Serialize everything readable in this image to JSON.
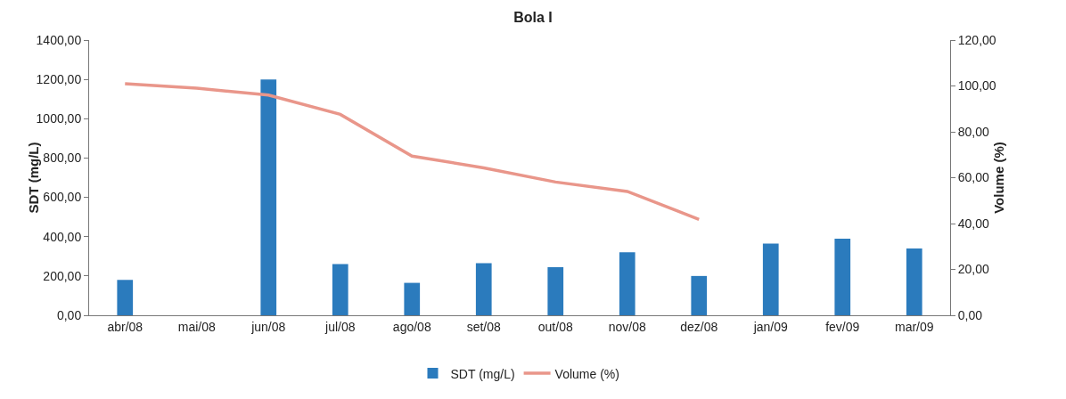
{
  "chart_data": {
    "type": "bar",
    "title": "Bola I",
    "ylabel": "SDT (mg/L)",
    "y2label": "Volume (%)",
    "categories": [
      "abr/08",
      "mai/08",
      "jun/08",
      "jul/08",
      "ago/08",
      "set/08",
      "out/08",
      "nov/08",
      "dez/08",
      "jan/09",
      "fev/09",
      "mar/09"
    ],
    "series": [
      {
        "name": "SDT (mg/L)",
        "color": "#2b7bbd",
        "values": [
          180,
          null,
          1200,
          260,
          165,
          265,
          245,
          320,
          200,
          365,
          390,
          340
        ]
      },
      {
        "name": "Volume (%)",
        "type": "line",
        "axis": "y2",
        "color": "#e9968a",
        "values": [
          101,
          99,
          96,
          87.6,
          69.4,
          64.3,
          58.1,
          54,
          41.8,
          null,
          null,
          null
        ]
      }
    ],
    "ylim": [
      0,
      1400
    ],
    "yticks": [
      {
        "value": 0,
        "label": "0,00"
      },
      {
        "value": 200,
        "label": "200,00"
      },
      {
        "value": 400,
        "label": "400,00"
      },
      {
        "value": 600,
        "label": "600,00"
      },
      {
        "value": 800,
        "label": "800,00"
      },
      {
        "value": 1000,
        "label": "1000,00"
      },
      {
        "value": 1200,
        "label": "1200,00"
      },
      {
        "value": 1400,
        "label": "1400,00"
      }
    ],
    "y2lim": [
      0,
      120
    ],
    "y2ticks": [
      {
        "value": 0,
        "label": "0,00"
      },
      {
        "value": 20,
        "label": "20,00"
      },
      {
        "value": 40,
        "label": "40,00"
      },
      {
        "value": 60,
        "label": "60,00"
      },
      {
        "value": 80,
        "label": "80,00"
      },
      {
        "value": 100,
        "label": "100,00"
      },
      {
        "value": 120,
        "label": "120,00"
      }
    ],
    "grid": false,
    "legend": "bottom",
    "marker": "none",
    "line_style": "solid"
  }
}
